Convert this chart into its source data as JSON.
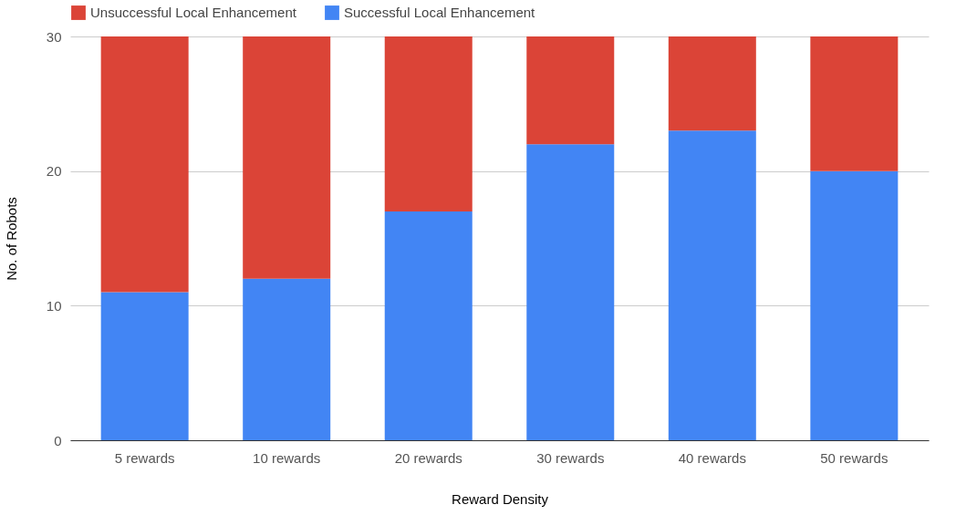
{
  "chart_data": {
    "type": "bar",
    "xlabel": "Reward Density",
    "ylabel": "No. of Robots",
    "categories": [
      "5 rewards",
      "10 rewards",
      "20 rewards",
      "30 rewards",
      "40 rewards",
      "50 rewards"
    ],
    "series": [
      {
        "name": "Successful Local Enhancement",
        "color": "#4285f4",
        "values": [
          11,
          12,
          17,
          22,
          23,
          20
        ]
      },
      {
        "name": "Unsuccessful Local Enhancement",
        "color": "#db4437",
        "values": [
          19,
          18,
          13,
          8,
          7,
          10
        ]
      }
    ],
    "stacked": true,
    "ylim": [
      0,
      30
    ],
    "yticks": [
      0,
      10,
      20,
      30
    ],
    "grid": "y",
    "legend": "top"
  }
}
